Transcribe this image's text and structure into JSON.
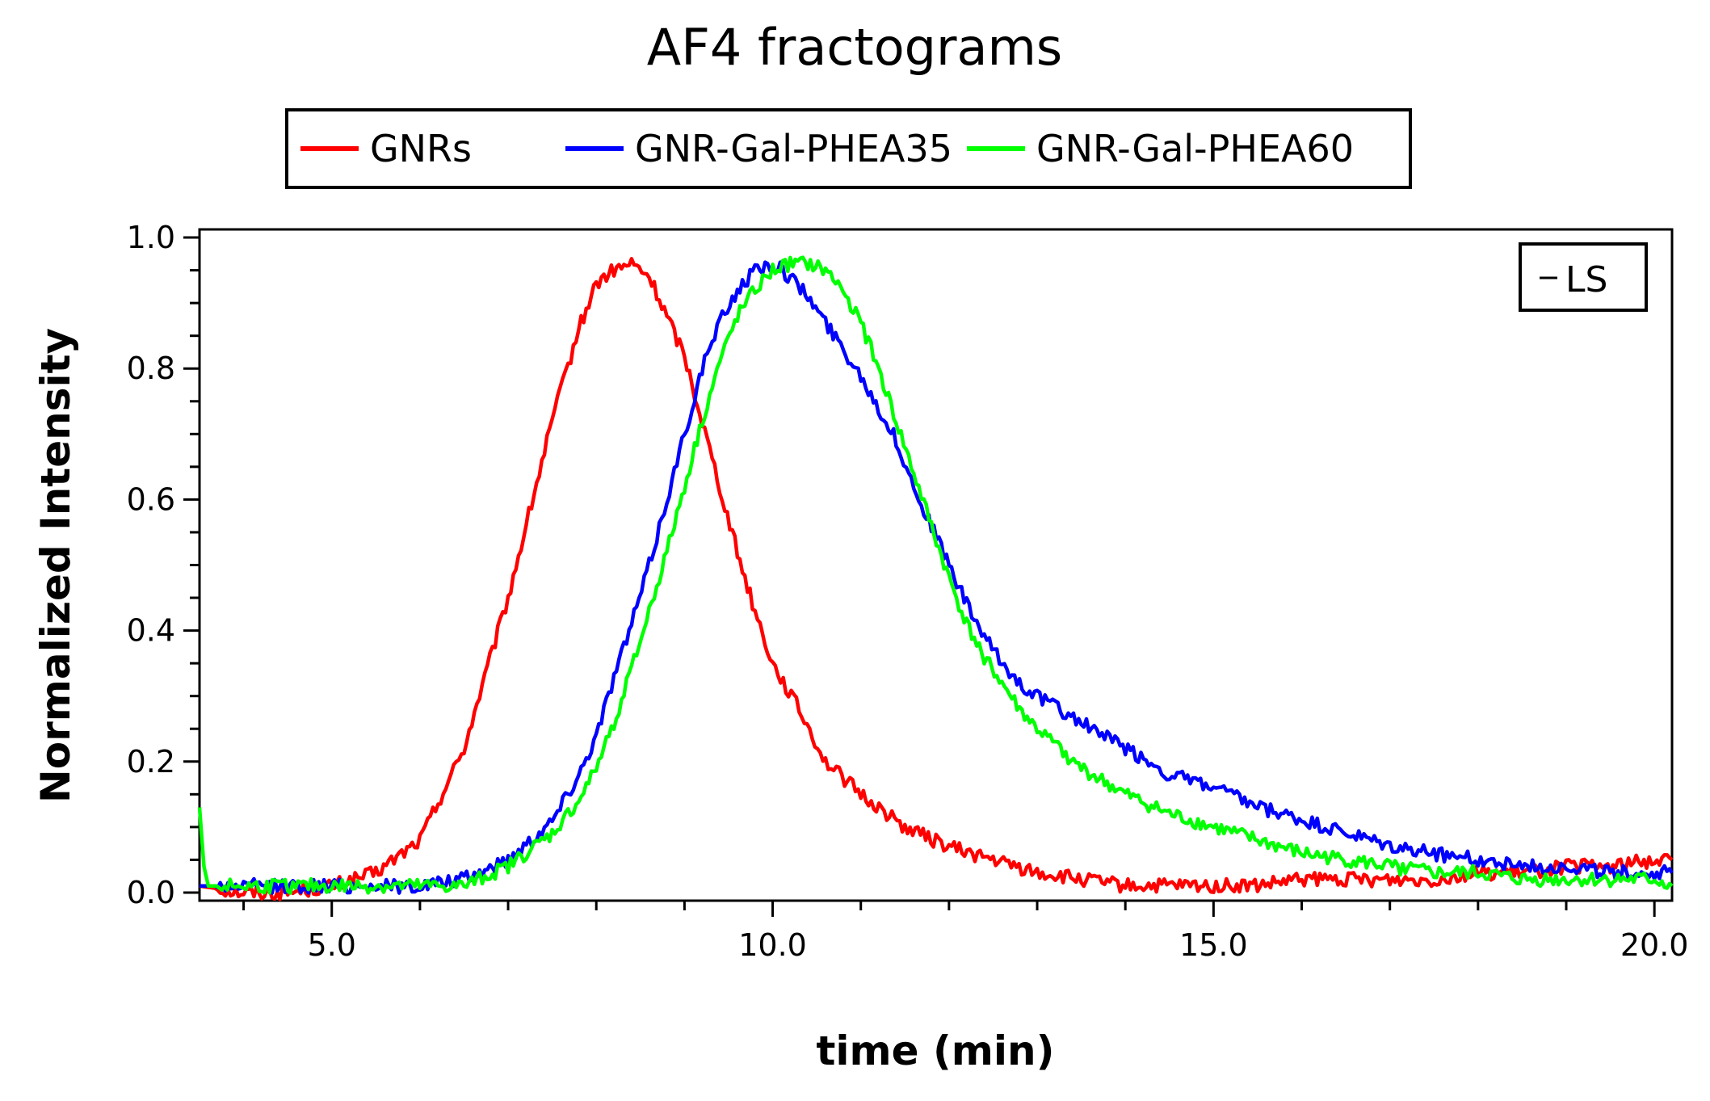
{
  "chart_data": {
    "type": "line",
    "title": "AF4 fractograms",
    "xlabel": "time (min)",
    "ylabel": "Normalized Intensity",
    "xlim": [
      3.5,
      20.2
    ],
    "ylim": [
      0.0,
      1.0
    ],
    "x_ticks": [
      5.0,
      10.0,
      15.0,
      20.0
    ],
    "x_tick_labels": [
      "5.0",
      "10.0",
      "15.0",
      "20.0"
    ],
    "y_ticks": [
      0.0,
      0.2,
      0.4,
      0.6,
      0.8,
      1.0
    ],
    "y_tick_labels": [
      "0.0",
      "0.2",
      "0.4",
      "0.6",
      "0.8",
      "1.0"
    ],
    "grid": false,
    "legend_placement": "top-center, above plot",
    "detector_box_label": "LS",
    "series": [
      {
        "name": "GNRs",
        "color": "#ff0000",
        "x": [
          3.5,
          4.0,
          4.5,
          5.0,
          5.5,
          6.0,
          6.5,
          7.0,
          7.5,
          7.8,
          8.0,
          8.2,
          8.4,
          8.6,
          8.8,
          9.0,
          9.2,
          9.4,
          9.6,
          9.8,
          10.0,
          10.3,
          10.6,
          11.0,
          11.5,
          12.0,
          12.5,
          13.0,
          13.5,
          14.0,
          14.5,
          15.0,
          15.5,
          16.0,
          16.5,
          17.0,
          17.5,
          18.0,
          18.5,
          19.0,
          19.5,
          20.0,
          20.2
        ],
        "y": [
          0.01,
          0.0,
          0.0,
          0.01,
          0.03,
          0.08,
          0.22,
          0.45,
          0.72,
          0.86,
          0.93,
          0.95,
          0.96,
          0.94,
          0.88,
          0.82,
          0.72,
          0.62,
          0.52,
          0.43,
          0.35,
          0.28,
          0.2,
          0.15,
          0.1,
          0.07,
          0.05,
          0.03,
          0.02,
          0.01,
          0.01,
          0.01,
          0.01,
          0.02,
          0.02,
          0.02,
          0.02,
          0.03,
          0.03,
          0.04,
          0.04,
          0.05,
          0.05
        ]
      },
      {
        "name": "GNR-Gal-PHEA35",
        "color": "#0000ff",
        "x": [
          3.5,
          4.0,
          4.5,
          5.0,
          5.5,
          6.0,
          6.5,
          7.0,
          7.5,
          7.8,
          8.0,
          8.2,
          8.4,
          8.6,
          8.8,
          9.0,
          9.2,
          9.4,
          9.6,
          9.8,
          10.0,
          10.2,
          10.4,
          10.6,
          10.8,
          11.0,
          11.2,
          11.4,
          11.6,
          11.8,
          12.0,
          12.2,
          12.4,
          12.6,
          12.8,
          13.0,
          13.5,
          14.0,
          14.5,
          15.0,
          15.5,
          16.0,
          16.5,
          17.0,
          17.5,
          18.0,
          18.5,
          19.0,
          19.5,
          20.0,
          20.2
        ],
        "y": [
          0.01,
          0.01,
          0.01,
          0.01,
          0.01,
          0.01,
          0.02,
          0.05,
          0.11,
          0.18,
          0.24,
          0.33,
          0.41,
          0.5,
          0.6,
          0.7,
          0.8,
          0.87,
          0.92,
          0.95,
          0.96,
          0.94,
          0.91,
          0.87,
          0.83,
          0.79,
          0.74,
          0.69,
          0.62,
          0.56,
          0.5,
          0.44,
          0.39,
          0.35,
          0.32,
          0.3,
          0.26,
          0.22,
          0.18,
          0.16,
          0.13,
          0.11,
          0.09,
          0.07,
          0.06,
          0.05,
          0.04,
          0.04,
          0.03,
          0.03,
          0.03
        ]
      },
      {
        "name": "GNR-Gal-PHEA60",
        "color": "#00ff00",
        "x": [
          3.5,
          3.55,
          3.6,
          4.0,
          4.5,
          5.0,
          5.5,
          6.0,
          6.5,
          7.0,
          7.5,
          7.8,
          8.0,
          8.2,
          8.4,
          8.6,
          8.8,
          9.0,
          9.2,
          9.4,
          9.6,
          9.8,
          10.0,
          10.2,
          10.4,
          10.6,
          10.8,
          11.0,
          11.2,
          11.4,
          11.6,
          11.8,
          12.0,
          12.2,
          12.4,
          12.6,
          12.8,
          13.0,
          13.5,
          14.0,
          14.5,
          15.0,
          15.5,
          16.0,
          16.5,
          17.0,
          17.5,
          18.0,
          18.5,
          19.0,
          19.5,
          20.0,
          20.2
        ],
        "y": [
          0.13,
          0.04,
          0.01,
          0.01,
          0.01,
          0.01,
          0.01,
          0.01,
          0.01,
          0.04,
          0.09,
          0.14,
          0.19,
          0.26,
          0.34,
          0.43,
          0.52,
          0.62,
          0.72,
          0.81,
          0.88,
          0.92,
          0.95,
          0.96,
          0.96,
          0.95,
          0.92,
          0.87,
          0.8,
          0.72,
          0.64,
          0.56,
          0.48,
          0.41,
          0.36,
          0.32,
          0.28,
          0.25,
          0.19,
          0.15,
          0.12,
          0.1,
          0.08,
          0.06,
          0.05,
          0.04,
          0.03,
          0.03,
          0.02,
          0.02,
          0.02,
          0.02,
          0.01
        ]
      }
    ]
  }
}
